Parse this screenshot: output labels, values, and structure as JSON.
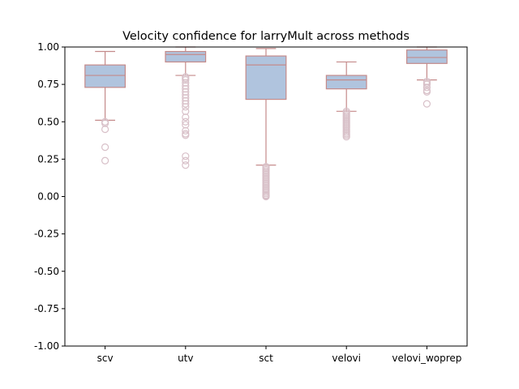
{
  "chart_data": {
    "type": "box",
    "title": "Velocity confidence for larryMult across methods",
    "xlabel": "",
    "ylabel": "",
    "ylim": [
      -1.0,
      1.0
    ],
    "yticks": [
      "-1.00",
      "-0.75",
      "-0.50",
      "-0.25",
      "0.00",
      "0.25",
      "0.50",
      "0.75",
      "1.00"
    ],
    "categories": [
      "scv",
      "utv",
      "sct",
      "velovi",
      "velovi_woprep"
    ],
    "boxes": [
      {
        "name": "scv",
        "whislo": 0.51,
        "q1": 0.73,
        "med": 0.81,
        "q3": 0.88,
        "whishi": 0.97,
        "fliers": [
          0.49,
          0.5,
          0.45,
          0.33,
          0.24
        ]
      },
      {
        "name": "utv",
        "whislo": 0.81,
        "q1": 0.9,
        "med": 0.95,
        "q3": 0.97,
        "whishi": 1.0,
        "fliers": [
          0.8,
          0.79,
          0.78,
          0.76,
          0.74,
          0.72,
          0.7,
          0.68,
          0.66,
          0.64,
          0.62,
          0.6,
          0.57,
          0.53,
          0.5,
          0.48,
          0.44,
          0.42,
          0.41,
          0.27,
          0.24,
          0.21
        ]
      },
      {
        "name": "sct",
        "whislo": 0.21,
        "q1": 0.65,
        "med": 0.88,
        "q3": 0.94,
        "whishi": 0.99,
        "fliers": [
          0.2,
          0.19,
          0.18,
          0.17,
          0.16,
          0.15,
          0.14,
          0.13,
          0.12,
          0.11,
          0.1,
          0.09,
          0.08,
          0.07,
          0.06,
          0.05,
          0.04,
          0.03,
          0.02,
          0.01,
          0.005,
          0.0
        ]
      },
      {
        "name": "velovi",
        "whislo": 0.57,
        "q1": 0.72,
        "med": 0.78,
        "q3": 0.81,
        "whishi": 0.9,
        "fliers": [
          0.57,
          0.56,
          0.55,
          0.54,
          0.53,
          0.52,
          0.51,
          0.5,
          0.49,
          0.48,
          0.47,
          0.46,
          0.45,
          0.44,
          0.43,
          0.42,
          0.41,
          0.4
        ]
      },
      {
        "name": "velovi_woprep",
        "whislo": 0.78,
        "q1": 0.89,
        "med": 0.93,
        "q3": 0.98,
        "whishi": 1.0,
        "fliers": [
          0.77,
          0.76,
          0.75,
          0.73,
          0.71,
          0.7,
          0.62
        ]
      }
    ],
    "colors": {
      "box_fill": "#b0c4de",
      "box_edge": "#c48a8a",
      "flier_edge": "#d8c0c8",
      "axis": "#000000"
    },
    "grid": false,
    "legend": "none"
  }
}
